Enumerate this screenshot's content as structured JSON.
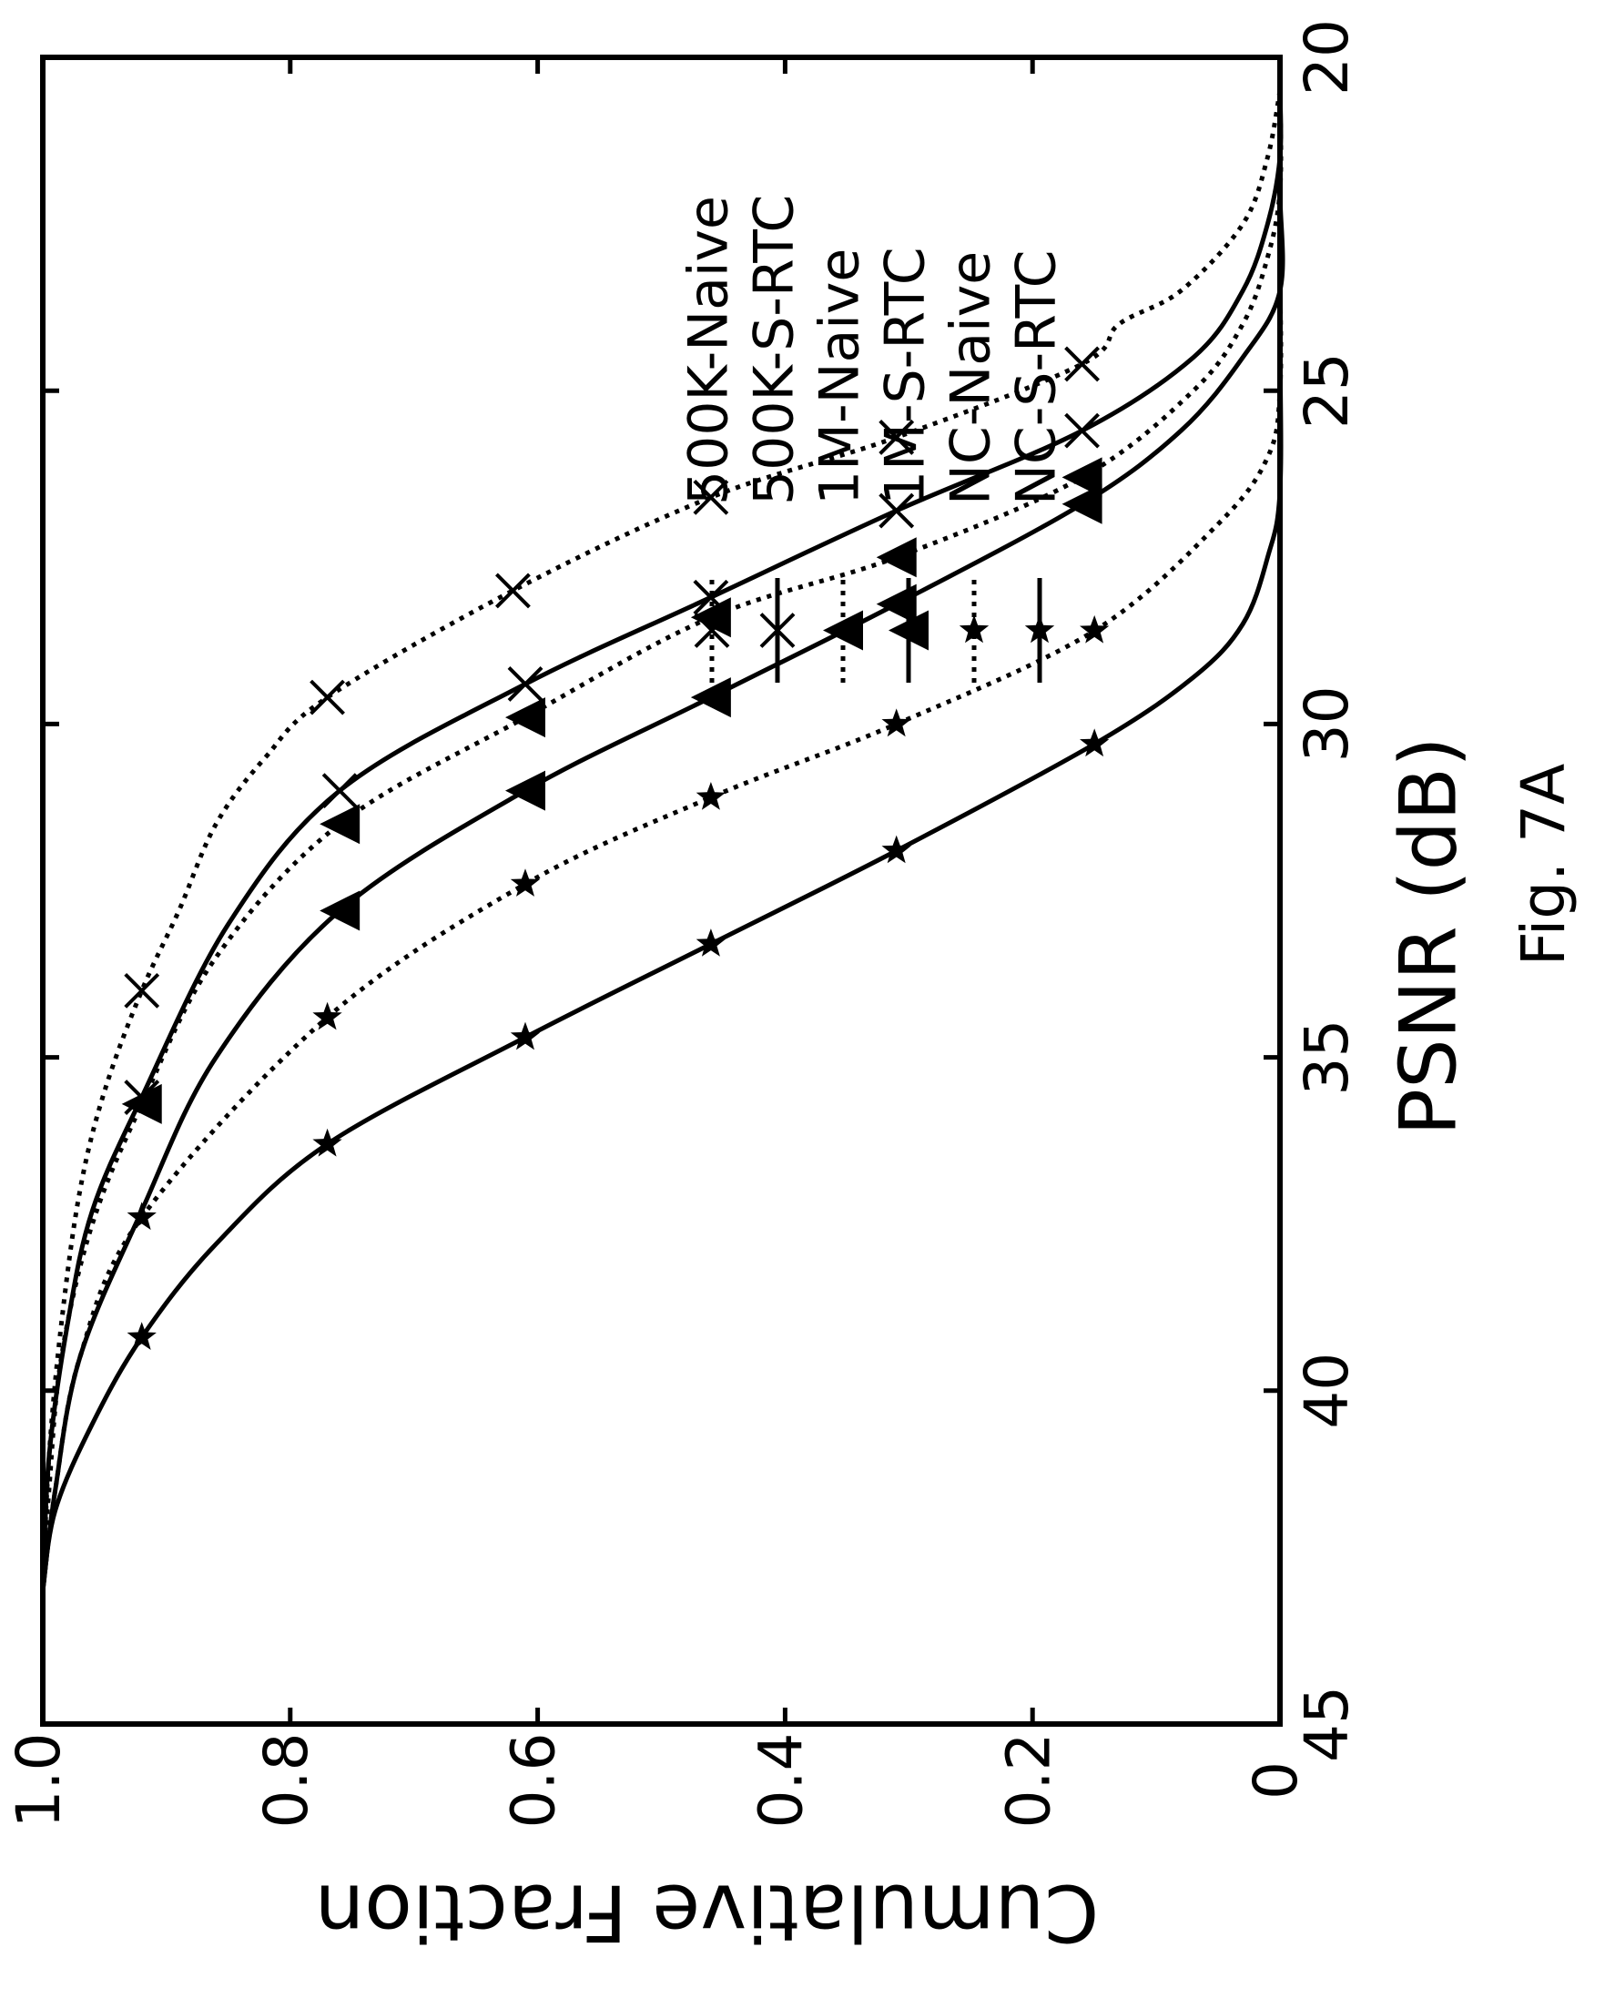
{
  "chart_data": {
    "type": "line",
    "orientation": "rotated 90° counter-clockwise",
    "title": "",
    "xlabel": "PSNR (dB)",
    "ylabel": "Cumulative Fraction",
    "caption": "Fig. 7A",
    "xlim": [
      20,
      45
    ],
    "ylim": [
      0,
      1.0
    ],
    "x_ticks": [
      "20",
      "25",
      "30",
      "35",
      "40",
      "45"
    ],
    "y_ticks": [
      "0",
      "0.2",
      "0.4",
      "0.6",
      "0.8",
      "1.0"
    ],
    "x_tick_values": [
      20,
      25,
      30,
      35,
      40,
      45
    ],
    "y_tick_values": [
      0,
      0.2,
      0.4,
      0.6,
      0.8,
      1.0
    ],
    "grid": false,
    "legend_position": "upper right",
    "series": [
      {
        "name": "500K-Naive",
        "line": "dotted",
        "marker": "x",
        "x": [
          20.5,
          21.5,
          22.5,
          23.5,
          24.0,
          24.6,
          25.7,
          26.6,
          28.0,
          29.6,
          30.5,
          31.5,
          32.8,
          34.0,
          35.5,
          37.0,
          39.0,
          41.0,
          43.0
        ],
        "y": [
          0.0,
          0.01,
          0.03,
          0.08,
          0.13,
          0.16,
          0.31,
          0.46,
          0.62,
          0.77,
          0.82,
          0.86,
          0.89,
          0.92,
          0.95,
          0.97,
          0.985,
          0.995,
          1.0
        ],
        "markers_x": [
          24.6,
          25.7,
          26.6,
          28.0,
          29.6,
          34.0
        ],
        "markers_y": [
          0.16,
          0.31,
          0.46,
          0.62,
          0.77,
          0.92
        ]
      },
      {
        "name": "500K-S-RTC",
        "line": "solid",
        "marker": "x",
        "x": [
          20.5,
          21.5,
          22.5,
          23.5,
          24.5,
          25.6,
          26.8,
          28.1,
          29.4,
          31.0,
          33.0,
          35.6,
          37.3,
          39.0,
          41.0,
          43.0
        ],
        "y": [
          0.0,
          0.0,
          0.01,
          0.03,
          0.07,
          0.16,
          0.31,
          0.46,
          0.61,
          0.76,
          0.85,
          0.92,
          0.96,
          0.98,
          0.995,
          1.0
        ],
        "markers_x": [
          25.6,
          26.8,
          28.1,
          29.4,
          31.0,
          35.6
        ],
        "markers_y": [
          0.16,
          0.31,
          0.46,
          0.61,
          0.76,
          0.92
        ]
      },
      {
        "name": "1M-Naive",
        "line": "dotted",
        "marker": "triangle",
        "x": [
          20.5,
          22.0,
          23.0,
          24.0,
          25.0,
          26.3,
          27.5,
          28.4,
          29.9,
          31.5,
          33.5,
          35.7,
          37.5,
          39.5,
          41.5,
          43.0
        ],
        "y": [
          0.0,
          0.0,
          0.01,
          0.03,
          0.07,
          0.16,
          0.31,
          0.46,
          0.61,
          0.76,
          0.86,
          0.92,
          0.96,
          0.985,
          0.995,
          1.0
        ],
        "markers_x": [
          26.3,
          27.5,
          28.4,
          29.9,
          31.5,
          35.7
        ],
        "markers_y": [
          0.16,
          0.31,
          0.46,
          0.61,
          0.76,
          0.92
        ]
      },
      {
        "name": "1M-S-RTC",
        "line": "solid",
        "marker": "triangle",
        "x": [
          20.5,
          22.0,
          23.5,
          24.5,
          25.6,
          26.7,
          28.2,
          29.6,
          31.0,
          32.8,
          35.0,
          37.3,
          39.5,
          41.5,
          43.0
        ],
        "y": [
          0.0,
          0.0,
          0.0,
          0.03,
          0.08,
          0.16,
          0.31,
          0.46,
          0.61,
          0.76,
          0.86,
          0.92,
          0.97,
          0.99,
          1.0
        ],
        "markers_x": [
          26.7,
          28.2,
          29.6,
          31.0,
          32.8
        ],
        "markers_y": [
          0.16,
          0.31,
          0.46,
          0.61,
          0.76
        ]
      },
      {
        "name": "NC-Naive",
        "line": "dotted",
        "marker": "star",
        "x": [
          20.5,
          23.0,
          25.0,
          26.0,
          27.0,
          28.6,
          30.0,
          31.1,
          32.4,
          34.4,
          37.4,
          39.5,
          41.5,
          43.0
        ],
        "y": [
          0.0,
          0.0,
          0.0,
          0.01,
          0.05,
          0.15,
          0.31,
          0.46,
          0.61,
          0.77,
          0.92,
          0.97,
          0.99,
          1.0
        ],
        "markers_x": [
          28.6,
          30.0,
          31.1,
          32.4,
          34.4,
          37.4
        ],
        "markers_y": [
          0.15,
          0.31,
          0.46,
          0.61,
          0.77,
          0.92
        ]
      },
      {
        "name": "NC-S-RTC",
        "line": "solid",
        "marker": "star",
        "x": [
          20.5,
          24.0,
          26.5,
          27.5,
          28.5,
          29.3,
          30.3,
          31.9,
          33.3,
          34.7,
          36.3,
          37.8,
          39.2,
          40.5,
          41.8,
          43.0
        ],
        "y": [
          0.0,
          0.0,
          0.0,
          0.01,
          0.03,
          0.07,
          0.15,
          0.31,
          0.46,
          0.61,
          0.77,
          0.86,
          0.92,
          0.96,
          0.99,
          1.0
        ],
        "markers_x": [
          30.3,
          31.9,
          33.3,
          34.7,
          36.3,
          39.2
        ],
        "markers_y": [
          0.15,
          0.31,
          0.46,
          0.61,
          0.77,
          0.92
        ]
      }
    ]
  }
}
